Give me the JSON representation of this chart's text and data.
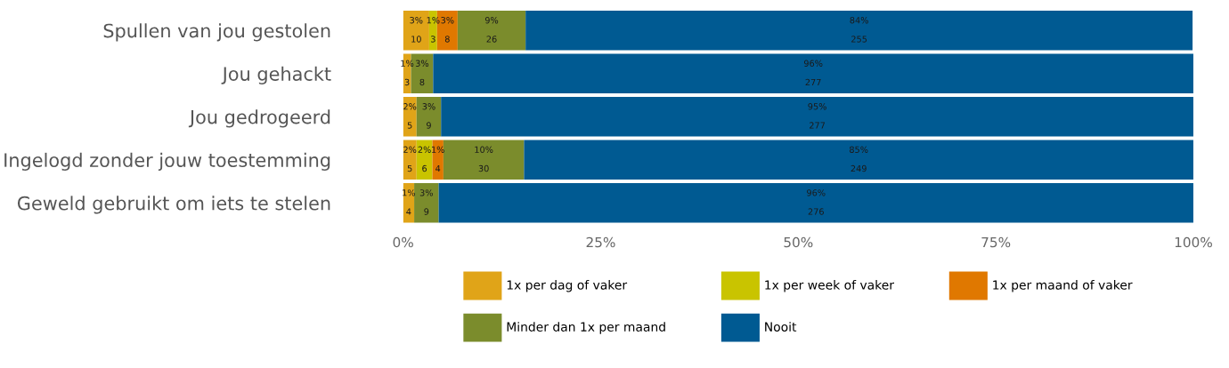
{
  "chart_data": {
    "type": "bar",
    "orientation": "horizontal",
    "stacked": true,
    "categories": [
      "Spullen van jou gestolen",
      "Jou gehackt",
      "Jou gedrogeerd",
      "Ingelogd zonder jouw toestemming",
      "Geweld gebruikt om iets te stelen"
    ],
    "series": [
      {
        "name": "1x per dag of vaker",
        "color": "#e0a418",
        "values": [
          3.3,
          1.0,
          1.7,
          1.7,
          1.4
        ],
        "value_labels": [
          "3%\n10",
          "1%\n3",
          "2%\n5",
          "2%\n5",
          "1%\n4"
        ]
      },
      {
        "name": "1x per week of vaker",
        "color": "#c9c400",
        "values": [
          1.0,
          null,
          null,
          2.0,
          null
        ],
        "value_labels": [
          "1%\n3",
          null,
          null,
          "2%\n6",
          null
        ]
      },
      {
        "name": "1x per maand of vaker",
        "color": "#e07800",
        "values": [
          2.6,
          null,
          null,
          1.4,
          null
        ],
        "value_labels": [
          "3%\n8",
          null,
          null,
          "1%\n4",
          null
        ]
      },
      {
        "name": "Minder dan 1x per maand",
        "color": "#7b8c2c",
        "values": [
          8.6,
          2.8,
          3.1,
          10.2,
          3.1
        ],
        "value_labels": [
          "9%\n26",
          "3%\n8",
          "3%\n9",
          "10%\n30",
          "3%\n9"
        ]
      },
      {
        "name": "Nooit",
        "color": "#005a92",
        "values": [
          84.4,
          96.2,
          95.2,
          84.7,
          95.5
        ],
        "value_labels": [
          "84%\n255",
          "96%\n277",
          "95%\n277",
          "85%\n249",
          "96%\n276"
        ]
      }
    ],
    "xlim": [
      0,
      100
    ],
    "xticks": [
      {
        "value": 0,
        "label": "0%"
      },
      {
        "value": 25,
        "label": "25%"
      },
      {
        "value": 50,
        "label": "50%"
      },
      {
        "value": 75,
        "label": "75%"
      },
      {
        "value": 100,
        "label": "100%"
      }
    ],
    "tick_labels": "xy",
    "grid": false,
    "legend": "bottom"
  }
}
